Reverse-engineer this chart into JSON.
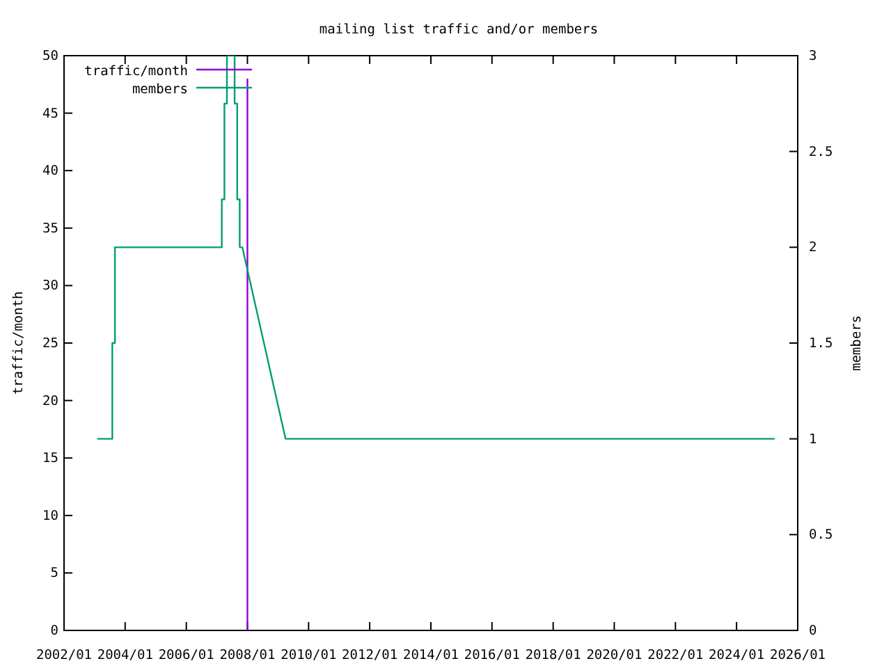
{
  "chart_data": {
    "type": "line",
    "title": "mailing list traffic and/or members",
    "ylabel": "traffic/month",
    "y2label": "members",
    "xlim": [
      "2002-01",
      "2026-01"
    ],
    "xticks": [
      {
        "value": "2002-01",
        "label": "2002/01"
      },
      {
        "value": "2004-01",
        "label": "2004/01"
      },
      {
        "value": "2006-01",
        "label": "2006/01"
      },
      {
        "value": "2008-01",
        "label": "2008/01"
      },
      {
        "value": "2010-01",
        "label": "2010/01"
      },
      {
        "value": "2012-01",
        "label": "2012/01"
      },
      {
        "value": "2014-01",
        "label": "2014/01"
      },
      {
        "value": "2016-01",
        "label": "2016/01"
      },
      {
        "value": "2018-01",
        "label": "2018/01"
      },
      {
        "value": "2020-01",
        "label": "2020/01"
      },
      {
        "value": "2022-01",
        "label": "2022/01"
      },
      {
        "value": "2024-01",
        "label": "2024/01"
      },
      {
        "value": "2026-01",
        "label": "2026/01"
      }
    ],
    "ylim": [
      0,
      50
    ],
    "yticks": [
      0,
      5,
      10,
      15,
      20,
      25,
      30,
      35,
      40,
      45,
      50
    ],
    "y2lim": [
      0,
      3
    ],
    "y2ticks": [
      0,
      0.5,
      1,
      1.5,
      2,
      2.5,
      3
    ],
    "legend": "top left",
    "series": [
      {
        "name": "traffic/month",
        "color": "#9400d3",
        "x": [
          "2008-01",
          "2008-01"
        ],
        "values": [
          0,
          48
        ]
      },
      {
        "name": "members",
        "color": "#009e73",
        "axis": "y2",
        "x": [
          "2003-02",
          "2003-08",
          "2003-08",
          "2003-09",
          "2003-09",
          "2007-03",
          "2007-03",
          "2007-04",
          "2007-04",
          "2007-05",
          "2007-05",
          "2007-08",
          "2007-08",
          "2007-09",
          "2007-09",
          "2007-10",
          "2007-10",
          "2007-11",
          "2009-04",
          "2025-04"
        ],
        "values": [
          1,
          1,
          1.5,
          1.5,
          2,
          2,
          2.25,
          2.25,
          2.75,
          2.75,
          3,
          3,
          2.75,
          2.75,
          2.25,
          2.25,
          2,
          2,
          1,
          1
        ]
      }
    ]
  }
}
